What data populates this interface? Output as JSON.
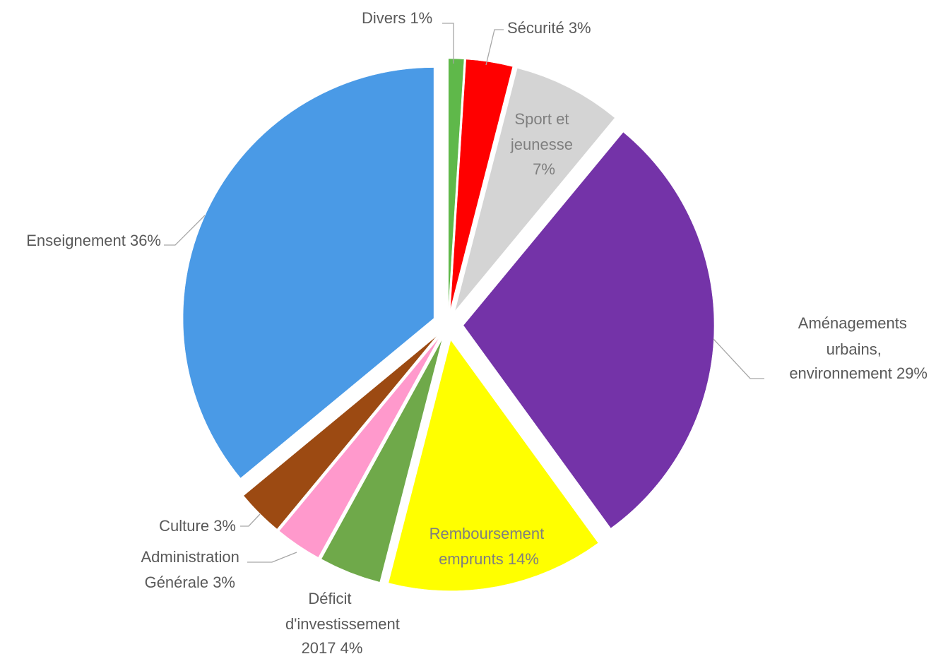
{
  "chart_data": {
    "type": "pie",
    "title": "",
    "slices": [
      {
        "name": "Divers",
        "value": 1,
        "label": "Divers 1%",
        "color": "#5fb84a",
        "text_color": "#595959"
      },
      {
        "name": "Sécurité",
        "value": 3,
        "label": "Sécurité 3%",
        "color": "#ff0000",
        "text_color": "#595959"
      },
      {
        "name": "Sport et jeunesse",
        "value": 7,
        "label_lines": [
          "Sport et",
          "jeunesse",
          "7%"
        ],
        "color": "#d4d4d4",
        "text_color": "#7f7f7f"
      },
      {
        "name": "Aménagements urbains, environnement",
        "value": 29,
        "label_lines": [
          "Aménagements",
          "urbains,",
          "environnement 29%"
        ],
        "color": "#7433a8",
        "text_color": "#595959"
      },
      {
        "name": "Remboursement emprunts",
        "value": 14,
        "label_lines": [
          "Remboursement",
          "emprunts 14%"
        ],
        "color": "#ffff00",
        "text_color": "#7f7f7f"
      },
      {
        "name": "Déficit d'investissement 2017",
        "value": 4,
        "label_lines": [
          "Déficit",
          "d'investissement",
          "2017 4%"
        ],
        "color": "#6fa94a",
        "text_color": "#595959"
      },
      {
        "name": "Administration Générale",
        "value": 3,
        "label_lines": [
          "Administration",
          "Générale 3%"
        ],
        "color": "#ff99cc",
        "text_color": "#595959"
      },
      {
        "name": "Culture",
        "value": 3,
        "label": "Culture 3%",
        "color": "#9c4a12",
        "text_color": "#595959"
      },
      {
        "name": "Enseignement",
        "value": 36,
        "label": "Enseignement 36%",
        "color": "#4a9ae6",
        "text_color": "#595959"
      }
    ],
    "exploded": true,
    "legend": "none"
  }
}
